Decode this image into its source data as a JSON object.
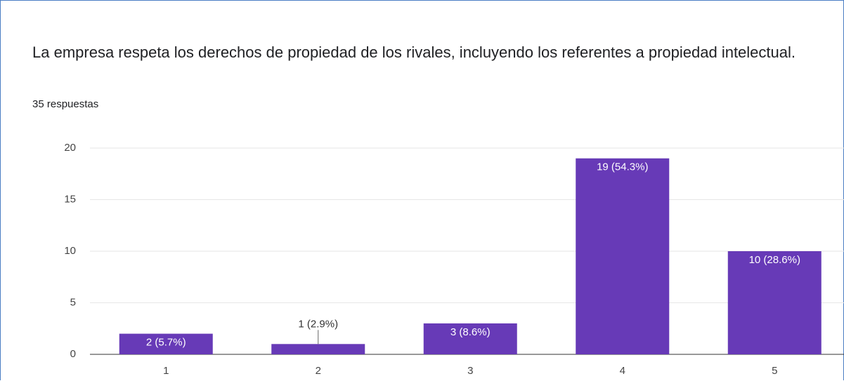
{
  "chart_data": {
    "type": "bar",
    "title": "La empresa respeta los derechos de propiedad de los rivales, incluyendo los referentes a propiedad intelectual.",
    "subtitle": "35 respuestas",
    "categories": [
      "1",
      "2",
      "3",
      "4",
      "5"
    ],
    "values": [
      2,
      1,
      3,
      19,
      10
    ],
    "value_labels": [
      "2 (5.7%)",
      "1 (2.9%)",
      "3 (8.6%)",
      "19 (54.3%)",
      "10 (28.6%)"
    ],
    "color": "#673ab7",
    "ylim": [
      0,
      20
    ],
    "yticks": [
      0,
      5,
      10,
      15,
      20
    ],
    "grid": true
  }
}
